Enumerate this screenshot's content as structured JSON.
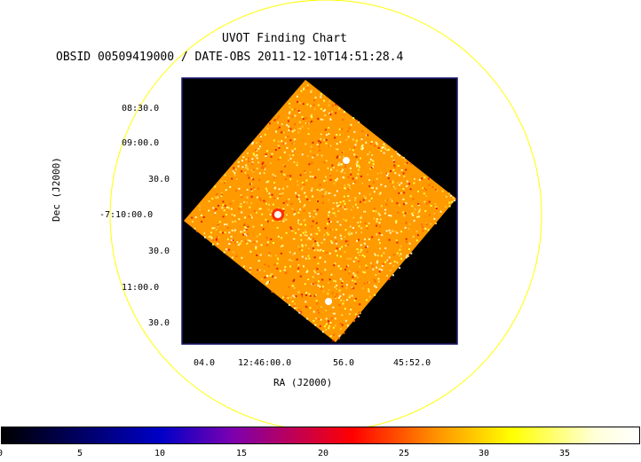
{
  "header": {
    "title": "UVOT Finding Chart",
    "subtitle": "OBSID 00509419000 / DATE-OBS 2011-12-10T14:51:28.4"
  },
  "axes": {
    "ylabel": "Dec (J2000)",
    "xlabel": "RA (J2000)",
    "dec_ticks": [
      "08:30.0",
      "09:00.0",
      "30.0",
      "-7:10:00.0",
      "30.0",
      "11:00.0",
      "30.0"
    ],
    "ra_ticks": [
      "04.0",
      "12:46:00.0",
      "56.0",
      "45:52.0"
    ]
  },
  "colorbar": {
    "ticks": [
      "0",
      "5",
      "10",
      "15",
      "20",
      "25",
      "30",
      "35"
    ],
    "range": [
      0,
      39
    ]
  },
  "colors": {
    "circle": "#ffff00",
    "frame": "#1a1a6e",
    "field_background": "#000000"
  }
}
